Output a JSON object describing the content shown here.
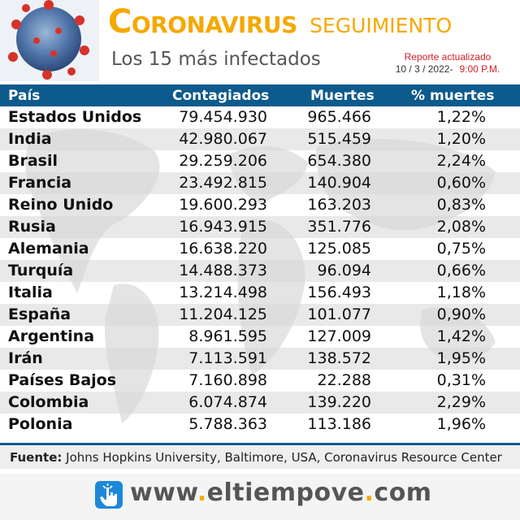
{
  "header": {
    "title_big": "C",
    "title_rest": "ORONAVIRUS",
    "title_secondary": "SEGUIMIENTO",
    "subtitle": "Los 15 más infectados",
    "report_label": "Reporte actualizado",
    "report_date": "10 / 3 / 2022-",
    "report_time": "9:00 P.M."
  },
  "table": {
    "columns": [
      "País",
      "Contagiados",
      "Muertes",
      "% muertes"
    ],
    "rows": [
      [
        "Estados Unidos",
        "79.454.930",
        "965.466",
        "1,22%"
      ],
      [
        "India",
        "42.980.067",
        "515.459",
        "1,20%"
      ],
      [
        "Brasil",
        "29.259.206",
        "654.380",
        "2,24%"
      ],
      [
        "Francia",
        "23.492.815",
        "140.904",
        "0,60%"
      ],
      [
        "Reino Unido",
        "19.600.293",
        "163.203",
        "0,83%"
      ],
      [
        "Rusia",
        "16.943.915",
        "351.776",
        "2,08%"
      ],
      [
        "Alemania",
        "16.638.220",
        "125.085",
        "0,75%"
      ],
      [
        "Turquía",
        "14.488.373",
        "96.094",
        "0,66%"
      ],
      [
        "Italia",
        "13.214.498",
        "156.493",
        "1,18%"
      ],
      [
        "España",
        "11.204.125",
        "101.077",
        "0,90%"
      ],
      [
        "Argentina",
        "8.961.595",
        "127.009",
        "1,42%"
      ],
      [
        "Irán",
        "7.113.591",
        "138.572",
        "1,95%"
      ],
      [
        "Países Bajos",
        "7.160.898",
        "22.288",
        "0,31%"
      ],
      [
        "Colombia",
        "6.074.874",
        "139.220",
        "2,29%"
      ],
      [
        "Polonia",
        "5.788.363",
        "113.186",
        "1,96%"
      ]
    ]
  },
  "source": {
    "label": "Fuente:",
    "text": "Johns Hopkins University, Baltimore, USA, Coronavirus Resource Center"
  },
  "footer": {
    "url_part1": "www",
    "url_part2": "eltiempove",
    "url_part3": "com",
    "dot": "."
  },
  "colors": {
    "accent": "#f5a800",
    "header_blue": "#0d5a8c",
    "report_red": "#d21f26"
  }
}
